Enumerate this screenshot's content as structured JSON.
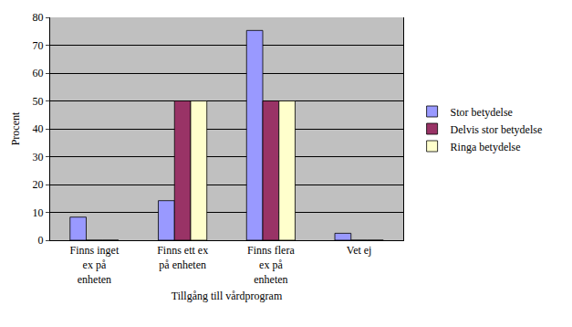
{
  "chart_data": {
    "type": "bar",
    "x_label": "Tillgång till vårdprogram",
    "y_label": "Procent",
    "categories": [
      "Finns inget ex på enheten",
      "Finns ett ex på enheten",
      "Finns flera ex på enheten",
      "Vet ej"
    ],
    "series": [
      {
        "name": "Stor betydelse",
        "color": "#9999ff",
        "values": [
          8.3,
          14.2,
          75.3,
          2.5
        ]
      },
      {
        "name": "Delvis stor betydelse",
        "color": "#993366",
        "values": [
          0,
          50,
          50,
          0
        ]
      },
      {
        "name": "Ringa betydelse",
        "color": "#ffffcc",
        "values": [
          0,
          50,
          50,
          0
        ]
      }
    ],
    "ylim": [
      0,
      80
    ],
    "yticks": [
      0,
      10,
      20,
      30,
      40,
      50,
      60,
      70,
      80
    ],
    "grid": true,
    "legend": "right"
  }
}
